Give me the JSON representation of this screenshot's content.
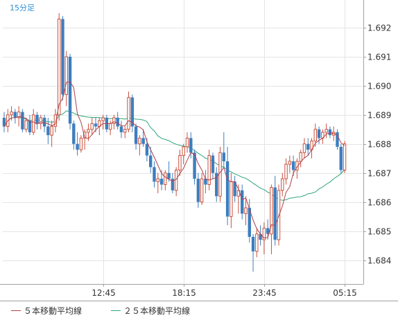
{
  "chart_data": {
    "type": "candlestick",
    "timeframe_label": "15分足",
    "y_ticks": [
      1.684,
      1.685,
      1.686,
      1.687,
      1.688,
      1.689,
      1.69,
      1.691,
      1.692
    ],
    "ylim": [
      1.6832,
      1.6928
    ],
    "x_tick_labels": [
      {
        "label": "12:45",
        "index": 27
      },
      {
        "label": "18:15",
        "index": 49
      },
      {
        "label": "23:45",
        "index": 71
      },
      {
        "label": "05:15",
        "index": 93
      }
    ],
    "colors": {
      "up": "#c9503c",
      "down": "#3d7ebf",
      "ma5": "#b0404a",
      "ma25": "#2ea37a",
      "grid": "#e4e4e4",
      "border": "#a0a0a0",
      "timeframe": "#2b8fd6"
    },
    "legend": [
      {
        "label": "５本移動平均線",
        "color": "#b0404a"
      },
      {
        "label": "２５本移動平均線",
        "color": "#2ea37a"
      }
    ],
    "candles": [
      [
        1.6889,
        1.6891,
        1.6884,
        1.6886
      ],
      [
        1.6886,
        1.6892,
        1.6884,
        1.689
      ],
      [
        1.689,
        1.6893,
        1.6888,
        1.6891
      ],
      [
        1.6891,
        1.6892,
        1.6887,
        1.6889
      ],
      [
        1.6889,
        1.6893,
        1.6886,
        1.6891
      ],
      [
        1.6891,
        1.6892,
        1.6884,
        1.6885
      ],
      [
        1.6885,
        1.6889,
        1.6884,
        1.6888
      ],
      [
        1.6888,
        1.689,
        1.6883,
        1.6884
      ],
      [
        1.6884,
        1.6892,
        1.6883,
        1.689
      ],
      [
        1.689,
        1.6891,
        1.6885,
        1.6887
      ],
      [
        1.6887,
        1.689,
        1.6885,
        1.6889
      ],
      [
        1.6889,
        1.689,
        1.6884,
        1.6886
      ],
      [
        1.6886,
        1.6889,
        1.688,
        1.6883
      ],
      [
        1.6883,
        1.6888,
        1.6879,
        1.6886
      ],
      [
        1.6886,
        1.6892,
        1.6884,
        1.689
      ],
      [
        1.689,
        1.6925,
        1.6888,
        1.6923
      ],
      [
        1.6923,
        1.6924,
        1.6895,
        1.6897
      ],
      [
        1.6897,
        1.6912,
        1.6893,
        1.691
      ],
      [
        1.691,
        1.6911,
        1.6885,
        1.6887
      ],
      [
        1.6887,
        1.6888,
        1.6878,
        1.688
      ],
      [
        1.688,
        1.6884,
        1.6876,
        1.6878
      ],
      [
        1.6878,
        1.6883,
        1.6877,
        1.6882
      ],
      [
        1.6882,
        1.6885,
        1.6878,
        1.6884
      ],
      [
        1.6884,
        1.6887,
        1.6881,
        1.6885
      ],
      [
        1.6885,
        1.6889,
        1.6883,
        1.6887
      ],
      [
        1.6887,
        1.6889,
        1.6884,
        1.6886
      ],
      [
        1.6886,
        1.6889,
        1.6883,
        1.6888
      ],
      [
        1.6888,
        1.689,
        1.6885,
        1.6889
      ],
      [
        1.6889,
        1.689,
        1.6884,
        1.6885
      ],
      [
        1.6885,
        1.6888,
        1.6883,
        1.6887
      ],
      [
        1.6887,
        1.689,
        1.6885,
        1.6889
      ],
      [
        1.6889,
        1.6891,
        1.6885,
        1.6886
      ],
      [
        1.6886,
        1.6888,
        1.6882,
        1.6884
      ],
      [
        1.6884,
        1.6886,
        1.6882,
        1.6885
      ],
      [
        1.6885,
        1.6898,
        1.6884,
        1.6896
      ],
      [
        1.6896,
        1.6897,
        1.6884,
        1.6886
      ],
      [
        1.6886,
        1.6887,
        1.6878,
        1.688
      ],
      [
        1.688,
        1.6883,
        1.6876,
        1.6882
      ],
      [
        1.6882,
        1.6885,
        1.6879,
        1.688
      ],
      [
        1.688,
        1.6882,
        1.6874,
        1.6876
      ],
      [
        1.6876,
        1.6879,
        1.687,
        1.6872
      ],
      [
        1.6872,
        1.6874,
        1.6865,
        1.6867
      ],
      [
        1.6867,
        1.687,
        1.6863,
        1.6868
      ],
      [
        1.6868,
        1.6871,
        1.6864,
        1.6866
      ],
      [
        1.6866,
        1.6871,
        1.6864,
        1.687
      ],
      [
        1.687,
        1.6874,
        1.6867,
        1.6868
      ],
      [
        1.6868,
        1.687,
        1.6863,
        1.6864
      ],
      [
        1.6864,
        1.6872,
        1.6862,
        1.6871
      ],
      [
        1.6871,
        1.6878,
        1.6869,
        1.6876
      ],
      [
        1.6876,
        1.688,
        1.6873,
        1.6879
      ],
      [
        1.6879,
        1.6884,
        1.6877,
        1.6882
      ],
      [
        1.6882,
        1.6884,
        1.6875,
        1.6877
      ],
      [
        1.6877,
        1.6878,
        1.6866,
        1.6868
      ],
      [
        1.6868,
        1.687,
        1.6858,
        1.686
      ],
      [
        1.686,
        1.687,
        1.6859,
        1.6868
      ],
      [
        1.6868,
        1.6871,
        1.6863,
        1.6866
      ],
      [
        1.6866,
        1.6878,
        1.6864,
        1.6876
      ],
      [
        1.6876,
        1.6877,
        1.6868,
        1.687
      ],
      [
        1.687,
        1.6872,
        1.686,
        1.6862
      ],
      [
        1.6862,
        1.6879,
        1.686,
        1.6877
      ],
      [
        1.6877,
        1.6884,
        1.6872,
        1.6874
      ],
      [
        1.6874,
        1.6879,
        1.6852,
        1.6855
      ],
      [
        1.6855,
        1.687,
        1.6851,
        1.6867
      ],
      [
        1.6867,
        1.6869,
        1.686,
        1.6862
      ],
      [
        1.6862,
        1.6866,
        1.6856,
        1.6864
      ],
      [
        1.6864,
        1.6866,
        1.6854,
        1.6856
      ],
      [
        1.6856,
        1.6862,
        1.6852,
        1.6858
      ],
      [
        1.6858,
        1.6861,
        1.6846,
        1.6848
      ],
      [
        1.6848,
        1.6849,
        1.6836,
        1.6843
      ],
      [
        1.6843,
        1.6851,
        1.6841,
        1.6849
      ],
      [
        1.6849,
        1.6852,
        1.6845,
        1.6847
      ],
      [
        1.6847,
        1.6853,
        1.6842,
        1.6851
      ],
      [
        1.6851,
        1.6854,
        1.6847,
        1.6849
      ],
      [
        1.6849,
        1.6866,
        1.6842,
        1.6865
      ],
      [
        1.6865,
        1.6869,
        1.6845,
        1.6847
      ],
      [
        1.6847,
        1.6866,
        1.6845,
        1.6864
      ],
      [
        1.6864,
        1.687,
        1.6862,
        1.6868
      ],
      [
        1.6868,
        1.6875,
        1.6866,
        1.6873
      ],
      [
        1.6873,
        1.6876,
        1.687,
        1.6874
      ],
      [
        1.6874,
        1.6876,
        1.6869,
        1.6871
      ],
      [
        1.6871,
        1.6875,
        1.6868,
        1.6874
      ],
      [
        1.6874,
        1.6878,
        1.6872,
        1.6877
      ],
      [
        1.6877,
        1.6882,
        1.6875,
        1.688
      ],
      [
        1.688,
        1.6882,
        1.6876,
        1.6878
      ],
      [
        1.6878,
        1.6882,
        1.6875,
        1.6881
      ],
      [
        1.6881,
        1.6887,
        1.6879,
        1.6885
      ],
      [
        1.6885,
        1.6886,
        1.688,
        1.6882
      ],
      [
        1.6882,
        1.6885,
        1.688,
        1.6884
      ],
      [
        1.6884,
        1.6887,
        1.6882,
        1.6885
      ],
      [
        1.6885,
        1.6886,
        1.6882,
        1.6883
      ],
      [
        1.6883,
        1.6886,
        1.6881,
        1.6884
      ],
      [
        1.6884,
        1.6885,
        1.6878,
        1.6879
      ],
      [
        1.6879,
        1.688,
        1.687,
        1.6871
      ],
      [
        1.6871,
        1.6881,
        1.687,
        1.688
      ]
    ]
  }
}
